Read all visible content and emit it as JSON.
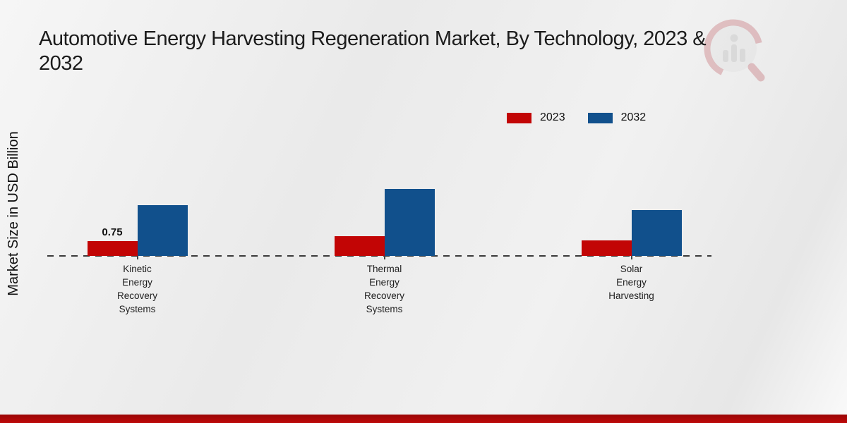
{
  "style": {
    "series_2023_color": "#c20505",
    "series_2032_color": "#11508c",
    "baseline_dash_color": "#3a3a3a",
    "footer_bar_color_top": "#9a0606",
    "footer_bar_color_bottom": "#bd0808"
  },
  "watermark": {
    "name": "market-research-magnifier-logo"
  },
  "chart_data": {
    "type": "bar",
    "title": "Automotive Energy Harvesting Regeneration Market, By Technology, 2023 & 2032",
    "title_lines": [
      "Automotive Energy Harvesting Regeneration Market, By Technology, 2023 &",
      "2032"
    ],
    "ylabel": "Market Size in USD Billion",
    "xlabel": "",
    "categories": [
      "Kinetic\nEnergy\nRecovery\nSystems",
      "Thermal\nEnergy\nRecovery\nSystems",
      "Solar\nEnergy\nHarvesting"
    ],
    "series": [
      {
        "name": "2023",
        "color": "#c20505",
        "values": [
          0.75,
          1.0,
          0.8
        ],
        "labels": [
          "0.75",
          "",
          ""
        ]
      },
      {
        "name": "2032",
        "color": "#11508c",
        "values": [
          2.57,
          3.39,
          2.32
        ],
        "labels": [
          "",
          "",
          ""
        ]
      }
    ],
    "ylim": [
      0,
      3.5
    ],
    "grid": false,
    "legend_position": "top-right",
    "baseline_style": "dashed"
  }
}
